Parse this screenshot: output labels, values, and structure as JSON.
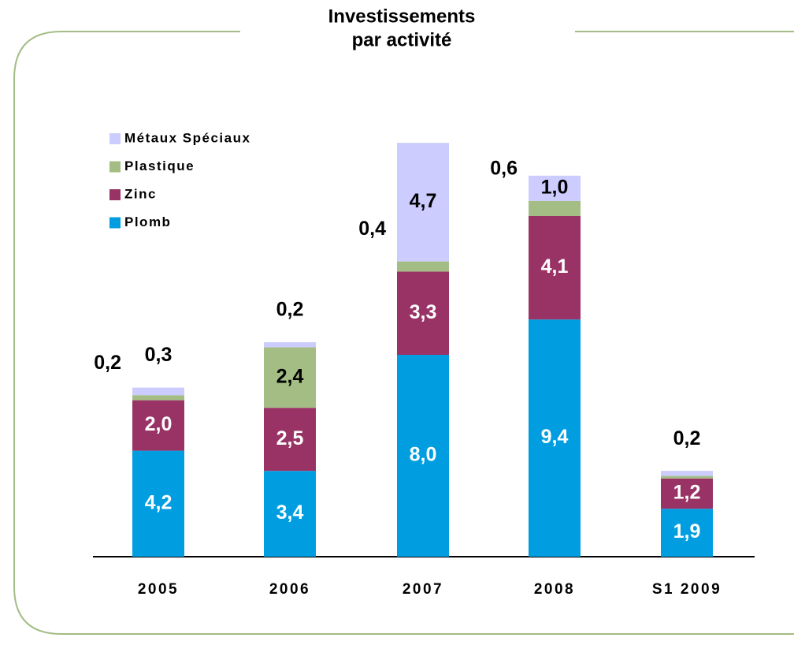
{
  "chart_data": {
    "type": "stacked-bar",
    "title": [
      "Investissements",
      "par activité"
    ],
    "categories": [
      "2005",
      "2006",
      "2007",
      "2008",
      "S1 2009"
    ],
    "series": [
      {
        "name": "Plomb",
        "color": "#009ee0",
        "values": [
          4.2,
          3.4,
          8.0,
          9.4,
          1.9
        ],
        "value_labels": [
          "4,2",
          "3,4",
          "8,0",
          "9,4",
          "1,9"
        ]
      },
      {
        "name": "Zinc",
        "color": "#993366",
        "values": [
          2.0,
          2.5,
          3.3,
          4.1,
          1.2
        ],
        "value_labels": [
          "2,0",
          "2,5",
          "3,3",
          "4,1",
          "1,2"
        ]
      },
      {
        "name": "Plastique",
        "color": "#a3bd85",
        "values": [
          0.2,
          2.4,
          0.4,
          0.6,
          0.1
        ],
        "value_labels": [
          "0,2",
          "2,4",
          "0,4",
          "0,6",
          null
        ]
      },
      {
        "name": "Métaux Spéciaux",
        "color": "#ccccff",
        "values": [
          0.3,
          0.2,
          4.7,
          1.0,
          0.2
        ],
        "value_labels": [
          "0,3",
          "0,2",
          "4,7",
          "1,0",
          "0,2"
        ]
      }
    ]
  }
}
